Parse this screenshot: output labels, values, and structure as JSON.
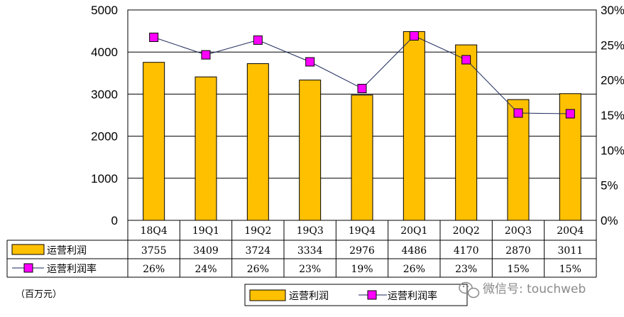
{
  "chart_data": {
    "type": "bar",
    "categories": [
      "18Q4",
      "19Q1",
      "19Q2",
      "19Q3",
      "19Q4",
      "20Q1",
      "20Q2",
      "20Q3",
      "20Q4"
    ],
    "series": [
      {
        "name": "运营利润",
        "type": "bar",
        "axis": "left",
        "color": "#FFC000",
        "values": [
          3755,
          3409,
          3724,
          3334,
          2976,
          4486,
          4170,
          2870,
          3011
        ]
      },
      {
        "name": "运营利润率",
        "type": "line",
        "axis": "right",
        "color": "#FF00FF",
        "values": [
          26,
          24,
          26,
          23,
          19,
          26,
          23,
          15,
          15
        ],
        "plotted_values": [
          26.1,
          23.6,
          25.7,
          22.6,
          18.8,
          26.3,
          22.9,
          15.3,
          15.2
        ]
      }
    ],
    "left_axis": {
      "min": 0,
      "max": 5000,
      "ticks": [
        "0",
        "1000",
        "2000",
        "3000",
        "4000",
        "5000"
      ]
    },
    "right_axis": {
      "min": 0,
      "max": 30,
      "ticks": [
        "0%",
        "5%",
        "10%",
        "15%",
        "20%",
        "25%",
        "30%"
      ]
    },
    "data_table": {
      "rows": [
        {
          "label": "运营利润",
          "values": [
            "3755",
            "3409",
            "3724",
            "3334",
            "2976",
            "4486",
            "4170",
            "2870",
            "3011"
          ]
        },
        {
          "label": "运营利润率",
          "values": [
            "26%",
            "24%",
            "26%",
            "23%",
            "19%",
            "26%",
            "23%",
            "15%",
            "15%"
          ]
        }
      ]
    },
    "unit": "（百万元）",
    "legend": {
      "position": "bottom-right",
      "entries": [
        "运营利润",
        "运营利润率"
      ]
    },
    "grid": true
  },
  "watermark": "微信号: touchweb"
}
